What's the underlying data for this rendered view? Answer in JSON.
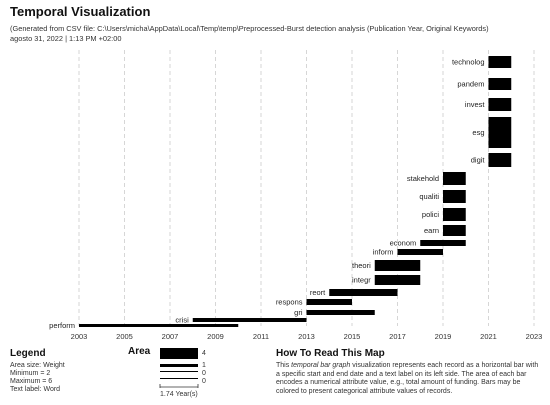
{
  "header": {
    "title": "Temporal Visualization",
    "subtitle_line1": "(Generated from CSV file: C:\\Users\\micha\\AppData\\Local\\Temp\\temp\\Preprocessed-Burst detection analysis (Publication Year, Original Keywords)",
    "subtitle_line2": "agosto 31, 2022 | 1:13 PM +02:00"
  },
  "chart_data": {
    "type": "bar",
    "orientation": "horizontal-timeline",
    "x_ticks": [
      "2003",
      "2005",
      "2007",
      "2009",
      "2011",
      "2013",
      "2015",
      "2017",
      "2019",
      "2021",
      "2023"
    ],
    "xlim": [
      2002,
      2024
    ],
    "grid": "vertical-dashed",
    "bars": [
      {
        "label": "technolog",
        "start": 2021,
        "end": 2022,
        "weight": 4
      },
      {
        "label": "pandem",
        "start": 2021,
        "end": 2022,
        "weight": 4
      },
      {
        "label": "invest",
        "start": 2021,
        "end": 2022,
        "weight": 4
      },
      {
        "label": "esg",
        "start": 2021,
        "end": 2022,
        "weight": 6
      },
      {
        "label": "digit",
        "start": 2021,
        "end": 2022,
        "weight": 4
      },
      {
        "label": "stakehold",
        "start": 2019,
        "end": 2020,
        "weight": 4
      },
      {
        "label": "qualiti",
        "start": 2019,
        "end": 2020,
        "weight": 4
      },
      {
        "label": "polici",
        "start": 2019,
        "end": 2020,
        "weight": 4
      },
      {
        "label": "earn",
        "start": 2019,
        "end": 2020,
        "weight": 4
      },
      {
        "label": "econom",
        "start": 2018,
        "end": 2020,
        "weight": 2
      },
      {
        "label": "inform",
        "start": 2017,
        "end": 2019,
        "weight": 2
      },
      {
        "label": "theori",
        "start": 2016,
        "end": 2018,
        "weight": 4
      },
      {
        "label": "integr",
        "start": 2016,
        "end": 2018,
        "weight": 4
      },
      {
        "label": "reort",
        "start": 2014,
        "end": 2017,
        "weight": 3
      },
      {
        "label": "respons",
        "start": 2013,
        "end": 2015,
        "weight": 3
      },
      {
        "label": "gri",
        "start": 2013,
        "end": 2016,
        "weight": 2
      },
      {
        "label": "crisi",
        "start": 2008,
        "end": 2013,
        "weight": 2
      },
      {
        "label": "perform",
        "start": 2003,
        "end": 2010,
        "weight": 2
      }
    ]
  },
  "legend": {
    "title": "Legend",
    "lines": [
      "Area size: Weight",
      "Minimum = 2",
      "Maximum = 6",
      "Text label: Word"
    ],
    "area_title": "Area",
    "area_values": [
      "4",
      "1",
      "0",
      "0"
    ],
    "scale_label": "1.74 Year(s)"
  },
  "how_to_read": {
    "title": "How To Read This Map",
    "text_before": "This ",
    "text_italic": "temporal bar graph",
    "text_after": " visualization represents each record as a horizontal bar with a specific start and end date and a text label on its left side. The area of each bar encodes a numerical attribute value, e.g., total amount of funding. Bars may be colored to present categorical attribute values of records."
  },
  "colors": {
    "bar": "#000000",
    "grid": "#cccccc",
    "text": "#222222"
  }
}
